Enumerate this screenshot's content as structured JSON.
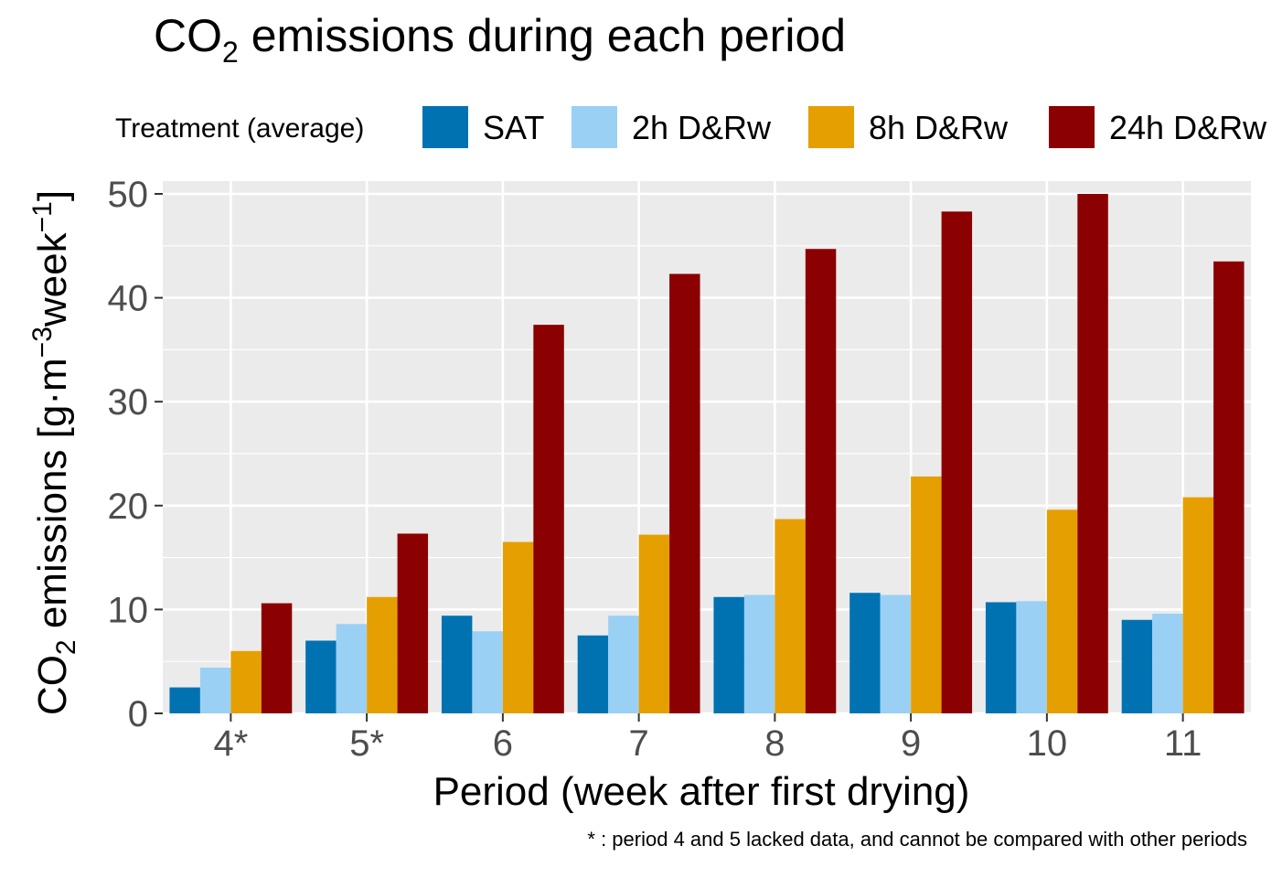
{
  "chart_data": {
    "type": "bar",
    "title": "CO2 emissions during each period",
    "title_main": "CO",
    "title_sub": "2",
    "title_rest": " emissions during each period",
    "xlabel": "Period (week after first drying)",
    "ylabel": "CO2 emissions [g·m−3week−1]",
    "ylabel_parts": {
      "co": "CO",
      "co_sub": "2",
      "main": " emissions [g·m",
      "exp1": "−3",
      "week": "week",
      "exp2": "−1",
      "close": "]"
    },
    "legend_title": "Treatment (average)",
    "legend_position": "top",
    "ylim": [
      0,
      50
    ],
    "yticks": [
      0,
      10,
      20,
      30,
      40,
      50
    ],
    "grid": true,
    "categories": [
      "4*",
      "5*",
      "6",
      "7",
      "8",
      "9",
      "10",
      "11"
    ],
    "series": [
      {
        "name": "SAT",
        "color": "#0072B2",
        "values": [
          2.5,
          7.0,
          9.4,
          7.5,
          11.2,
          11.6,
          10.7,
          9.0
        ]
      },
      {
        "name": "2h D&Rw",
        "color": "#9BD0F5",
        "values": [
          4.4,
          8.6,
          7.9,
          9.4,
          11.4,
          11.4,
          10.8,
          9.6
        ]
      },
      {
        "name": "8h D&Rw",
        "color": "#E69F00",
        "values": [
          6.0,
          11.2,
          16.5,
          17.2,
          18.7,
          22.8,
          19.6,
          20.8
        ]
      },
      {
        "name": "24h D&Rw",
        "color": "#8B0000",
        "values": [
          10.6,
          17.3,
          37.4,
          42.3,
          44.7,
          48.3,
          50.0,
          43.5
        ]
      }
    ],
    "footnote": "* : period 4 and 5 lacked data, and cannot be compared with other periods"
  }
}
